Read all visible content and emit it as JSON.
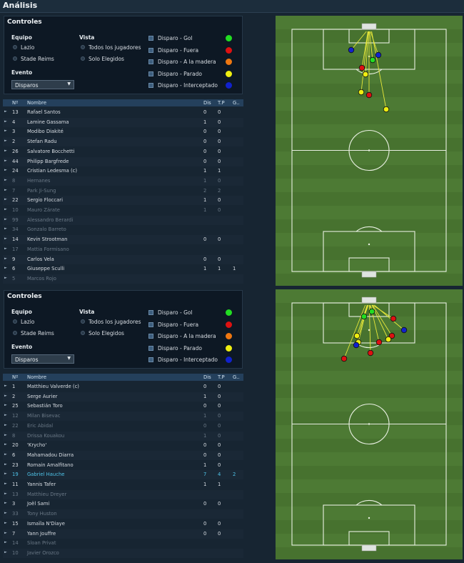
{
  "header": {
    "title": "Análisis"
  },
  "panels": [
    {
      "controls": {
        "title": "Controles",
        "team_label": "Equipo",
        "teams": [
          "Lazio",
          "Stade Reims"
        ],
        "view_label": "Vista",
        "views": [
          "Todos los jugadores",
          "Solo Elegidos"
        ],
        "event_label": "Evento",
        "event": "Disparos",
        "legend": [
          {
            "label": "Disparo - Gol",
            "color": "#22dd22"
          },
          {
            "label": "Disparo - Fuera",
            "color": "#dd1111"
          },
          {
            "label": "Disparo - A la madera",
            "color": "#ee7711"
          },
          {
            "label": "Disparo - Parado",
            "color": "#eeee11"
          },
          {
            "label": "Disparo - Interceptado",
            "color": "#1122cc"
          }
        ]
      },
      "table": {
        "headers": [
          "Nº",
          "Nombre",
          "Dis",
          "T.P",
          "G.."
        ],
        "rows": [
          {
            "num": "13",
            "name": "Rafael Santos",
            "dis": "0",
            "tp": "0"
          },
          {
            "num": "4",
            "name": "Lamine Gassama",
            "dis": "1",
            "tp": "0"
          },
          {
            "num": "3",
            "name": "Modibo Diakité",
            "dis": "0",
            "tp": "0"
          },
          {
            "num": "2",
            "name": "Stefan Radu",
            "dis": "0",
            "tp": "0"
          },
          {
            "num": "26",
            "name": "Salvatore Bocchetti",
            "dis": "0",
            "tp": "0"
          },
          {
            "num": "44",
            "name": "Philipp Bargfrede",
            "dis": "0",
            "tp": "0"
          },
          {
            "num": "24",
            "name": "Cristian Ledesma (c)",
            "dis": "1",
            "tp": "1"
          },
          {
            "num": "8",
            "name": "Hernanes",
            "dis": "1",
            "tp": "0",
            "style": "dim"
          },
          {
            "num": "7",
            "name": "Park Ji-Sung",
            "dis": "2",
            "tp": "2",
            "style": "dim"
          },
          {
            "num": "22",
            "name": "Sergio Floccari",
            "dis": "1",
            "tp": "0"
          },
          {
            "num": "10",
            "name": "Mauro Zárate",
            "dis": "1",
            "tp": "0",
            "style": "dim"
          },
          {
            "num": "99",
            "name": "Alessandro Berardi",
            "style": "dim"
          },
          {
            "num": "34",
            "name": "Gonzalo Barreto",
            "style": "dim"
          },
          {
            "num": "14",
            "name": "Kevin Strootman",
            "dis": "0",
            "tp": "0"
          },
          {
            "num": "17",
            "name": "Mattia Formisano",
            "style": "dim"
          },
          {
            "num": "9",
            "name": "Carlos Vela",
            "dis": "0",
            "tp": "0"
          },
          {
            "num": "6",
            "name": "Giuseppe Sculli",
            "dis": "1",
            "tp": "1",
            "g": "1"
          },
          {
            "num": "5",
            "name": "Marcos Rojo",
            "style": "dim"
          }
        ]
      }
    },
    {
      "controls": {
        "title": "Controles",
        "team_label": "Equipo",
        "teams": [
          "Lazio",
          "Stade Reims"
        ],
        "view_label": "Vista",
        "views": [
          "Todos los jugadores",
          "Solo Elegidos"
        ],
        "event_label": "Evento",
        "event": "Disparos",
        "legend": [
          {
            "label": "Disparo - Gol",
            "color": "#22dd22"
          },
          {
            "label": "Disparo - Fuera",
            "color": "#dd1111"
          },
          {
            "label": "Disparo - A la madera",
            "color": "#ee7711"
          },
          {
            "label": "Disparo - Parado",
            "color": "#eeee11"
          },
          {
            "label": "Disparo - Interceptado",
            "color": "#1122cc"
          }
        ]
      },
      "table": {
        "headers": [
          "Nº",
          "Nombre",
          "Dis",
          "T.P",
          "G.."
        ],
        "rows": [
          {
            "num": "1",
            "name": "Matthieu Valverde (c)",
            "dis": "0",
            "tp": "0"
          },
          {
            "num": "2",
            "name": "Serge Aurier",
            "dis": "1",
            "tp": "0"
          },
          {
            "num": "25",
            "name": "Sebastián Toro",
            "dis": "0",
            "tp": "0"
          },
          {
            "num": "12",
            "name": "Milan Bisevac",
            "dis": "1",
            "tp": "0",
            "style": "dim"
          },
          {
            "num": "22",
            "name": "Eric Abidal",
            "dis": "0",
            "tp": "0",
            "style": "dim"
          },
          {
            "num": "8",
            "name": "Drissa Kouakou",
            "dis": "1",
            "tp": "0",
            "style": "dim"
          },
          {
            "num": "20",
            "name": "'Krycho'",
            "dis": "0",
            "tp": "0"
          },
          {
            "num": "6",
            "name": "Mahamadou Diarra",
            "dis": "0",
            "tp": "0"
          },
          {
            "num": "23",
            "name": "Romain Amalfitano",
            "dis": "1",
            "tp": "0"
          },
          {
            "num": "19",
            "name": "Gabriel Hauche",
            "dis": "7",
            "tp": "4",
            "g": "2",
            "style": "highlight"
          },
          {
            "num": "11",
            "name": "Yannis Tafer",
            "dis": "1",
            "tp": "1"
          },
          {
            "num": "13",
            "name": "Matthieu Dreyer",
            "style": "dim"
          },
          {
            "num": "3",
            "name": "Joël Sami",
            "dis": "0",
            "tp": "0"
          },
          {
            "num": "33",
            "name": "Tony Huston",
            "style": "dim"
          },
          {
            "num": "15",
            "name": "Ismaïla N'Diaye",
            "dis": "0",
            "tp": "0"
          },
          {
            "num": "7",
            "name": "Yann Jouffre",
            "dis": "0",
            "tp": "0"
          },
          {
            "num": "14",
            "name": "Sloan Privat",
            "style": "dim"
          },
          {
            "num": "10",
            "name": "Javier Orozco",
            "style": "dim"
          }
        ]
      }
    }
  ]
}
